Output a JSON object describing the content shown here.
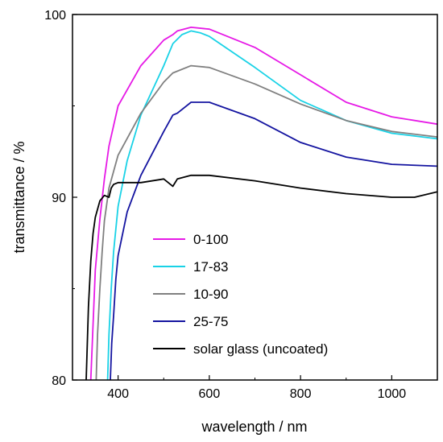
{
  "chart_data": {
    "type": "line",
    "title": "",
    "xlabel": "wavelength / nm",
    "ylabel": "transmittance / %",
    "xlim": [
      300,
      1100
    ],
    "ylim": [
      80,
      100
    ],
    "xticks": [
      400,
      600,
      800,
      1000
    ],
    "yticks": [
      80,
      90,
      100
    ],
    "xtick_labels": [
      "400",
      "600",
      "800",
      "1000"
    ],
    "ytick_labels": [
      "80",
      "90",
      "100"
    ],
    "grid": false,
    "legend_position": "bottom-right",
    "series": [
      {
        "name": "0-100",
        "color": "#e619e6",
        "x": [
          340,
          350,
          360,
          370,
          380,
          400,
          450,
          500,
          520,
          530,
          560,
          600,
          700,
          800,
          900,
          1000,
          1100
        ],
        "y": [
          80,
          86.0,
          88.8,
          91.0,
          92.8,
          95.0,
          97.2,
          98.6,
          98.9,
          99.1,
          99.3,
          99.2,
          98.2,
          96.7,
          95.2,
          94.4,
          94.0
        ]
      },
      {
        "name": "17-83",
        "color": "#19d2e6",
        "x": [
          377,
          380,
          385,
          390,
          400,
          420,
          450,
          500,
          520,
          540,
          560,
          580,
          600,
          700,
          800,
          900,
          1000,
          1100
        ],
        "y": [
          80,
          82.5,
          85.0,
          87.0,
          89.5,
          92.0,
          94.5,
          97.2,
          98.4,
          98.9,
          99.1,
          99.0,
          98.8,
          97.1,
          95.3,
          94.2,
          93.5,
          93.2
        ]
      },
      {
        "name": "10-90",
        "color": "#808080",
        "x": [
          352,
          355,
          360,
          365,
          370,
          380,
          400,
          450,
          500,
          520,
          530,
          560,
          600,
          700,
          800,
          900,
          1000,
          1100
        ],
        "y": [
          80,
          82.5,
          85.0,
          87.0,
          88.7,
          90.5,
          92.3,
          94.6,
          96.3,
          96.8,
          96.9,
          97.2,
          97.1,
          96.2,
          95.1,
          94.2,
          93.6,
          93.3
        ]
      },
      {
        "name": "25-75",
        "color": "#1414a0",
        "x": [
          383,
          386,
          390,
          395,
          400,
          420,
          450,
          500,
          520,
          530,
          560,
          600,
          700,
          800,
          900,
          1000,
          1100
        ],
        "y": [
          80,
          82.0,
          83.5,
          85.5,
          86.8,
          89.2,
          91.2,
          93.6,
          94.5,
          94.6,
          95.2,
          95.2,
          94.3,
          93.0,
          92.2,
          91.8,
          91.7
        ]
      },
      {
        "name": "solar glass (uncoated)",
        "color": "#000000",
        "x": [
          330,
          335,
          340,
          345,
          350,
          360,
          370,
          380,
          385,
          390,
          400,
          450,
          500,
          520,
          530,
          560,
          600,
          700,
          800,
          900,
          1000,
          1050,
          1100
        ],
        "y": [
          80,
          84.0,
          86.5,
          88.0,
          88.9,
          89.8,
          90.1,
          90.0,
          90.5,
          90.7,
          90.8,
          90.8,
          91.0,
          90.6,
          91.0,
          91.2,
          91.2,
          90.9,
          90.5,
          90.2,
          90.0,
          90.0,
          90.3
        ]
      }
    ]
  }
}
